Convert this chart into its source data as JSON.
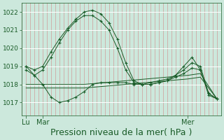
{
  "background_color": "#cce8dc",
  "plot_bg_color": "#cce8dc",
  "line_color": "#1a5c28",
  "xlabel": "Pression niveau de la mer( hPa )",
  "xlabel_fontsize": 9,
  "yticks": [
    1017,
    1018,
    1019,
    1020,
    1021,
    1022
  ],
  "ylim": [
    1016.3,
    1022.5
  ],
  "xlim": [
    0,
    48
  ],
  "n_vgrid": 49,
  "xtick_positions": [
    1,
    5,
    40
  ],
  "xtick_labels": [
    "Lu",
    "Mar",
    "Mer"
  ],
  "series": [
    {
      "x": [
        1,
        3,
        5,
        7,
        9,
        11,
        13,
        15,
        17,
        19,
        21,
        23,
        25,
        27,
        29,
        31,
        33,
        35,
        37,
        39,
        41,
        43,
        45,
        47
      ],
      "y": [
        1019.0,
        1018.8,
        1019.0,
        1019.8,
        1020.5,
        1021.1,
        1021.6,
        1022.0,
        1022.1,
        1021.9,
        1021.4,
        1020.5,
        1019.2,
        1018.2,
        1018.0,
        1018.1,
        1018.2,
        1018.3,
        1018.5,
        1018.8,
        1019.2,
        1019.0,
        1017.5,
        1017.2
      ],
      "marker": "+"
    },
    {
      "x": [
        1,
        3,
        5,
        7,
        9,
        11,
        13,
        15,
        17,
        19,
        21,
        23,
        25,
        27,
        29,
        31,
        33,
        35,
        37,
        39,
        41,
        43,
        45,
        47
      ],
      "y": [
        1018.8,
        1018.5,
        1018.8,
        1019.5,
        1020.3,
        1021.0,
        1021.5,
        1021.8,
        1021.8,
        1021.5,
        1021.0,
        1020.0,
        1018.8,
        1018.1,
        1018.0,
        1018.0,
        1018.1,
        1018.2,
        1018.4,
        1018.6,
        1018.9,
        1018.8,
        1017.4,
        1017.2
      ],
      "marker": "+"
    },
    {
      "x": [
        1,
        5,
        10,
        15,
        20,
        25,
        30,
        35,
        40,
        43,
        47
      ],
      "y": [
        1018.0,
        1018.0,
        1018.0,
        1018.0,
        1018.1,
        1018.2,
        1018.3,
        1018.4,
        1018.5,
        1018.6,
        1017.2
      ],
      "marker": null
    },
    {
      "x": [
        1,
        5,
        10,
        15,
        20,
        25,
        30,
        35,
        40,
        43,
        47
      ],
      "y": [
        1017.8,
        1017.8,
        1017.8,
        1017.8,
        1017.9,
        1018.0,
        1018.1,
        1018.2,
        1018.3,
        1018.4,
        1017.2
      ],
      "marker": null
    },
    {
      "x": [
        1,
        3,
        5,
        7,
        9,
        11,
        13,
        15,
        17,
        19,
        21,
        23,
        25,
        27,
        29,
        31,
        33,
        35,
        37,
        39,
        41,
        43,
        45,
        47
      ],
      "y": [
        1019.0,
        1018.5,
        1018.0,
        1017.3,
        1017.0,
        1017.1,
        1017.3,
        1017.6,
        1018.0,
        1018.1,
        1018.1,
        1018.1,
        1018.1,
        1018.0,
        1018.0,
        1018.0,
        1018.1,
        1018.2,
        1018.5,
        1019.0,
        1019.5,
        1018.8,
        1017.5,
        1017.2
      ],
      "marker": "+"
    }
  ]
}
